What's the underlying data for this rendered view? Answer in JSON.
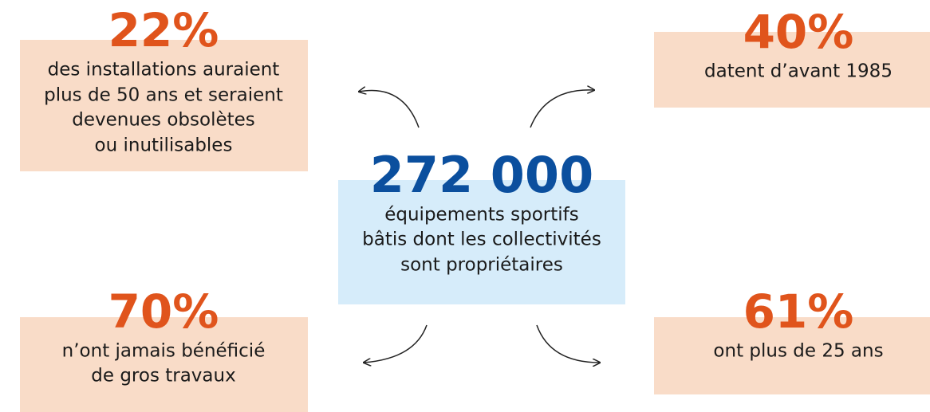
{
  "center": {
    "value": "272 000",
    "lines": [
      "équipements sportifs",
      "bâtis dont les collectivités",
      "sont propriétaires"
    ]
  },
  "items": [
    {
      "value": "22%",
      "lines": [
        "des installations auraient",
        "plus de 50 ans et seraient",
        "devenues obsolètes",
        "ou inutilisables"
      ]
    },
    {
      "value": "40%",
      "lines": [
        "datent d’avant 1985"
      ]
    },
    {
      "value": "70%",
      "lines": [
        "n’ont jamais bénéficié",
        "de gros travaux"
      ]
    },
    {
      "value": "61%",
      "lines": [
        "ont plus de 25 ans"
      ]
    }
  ]
}
